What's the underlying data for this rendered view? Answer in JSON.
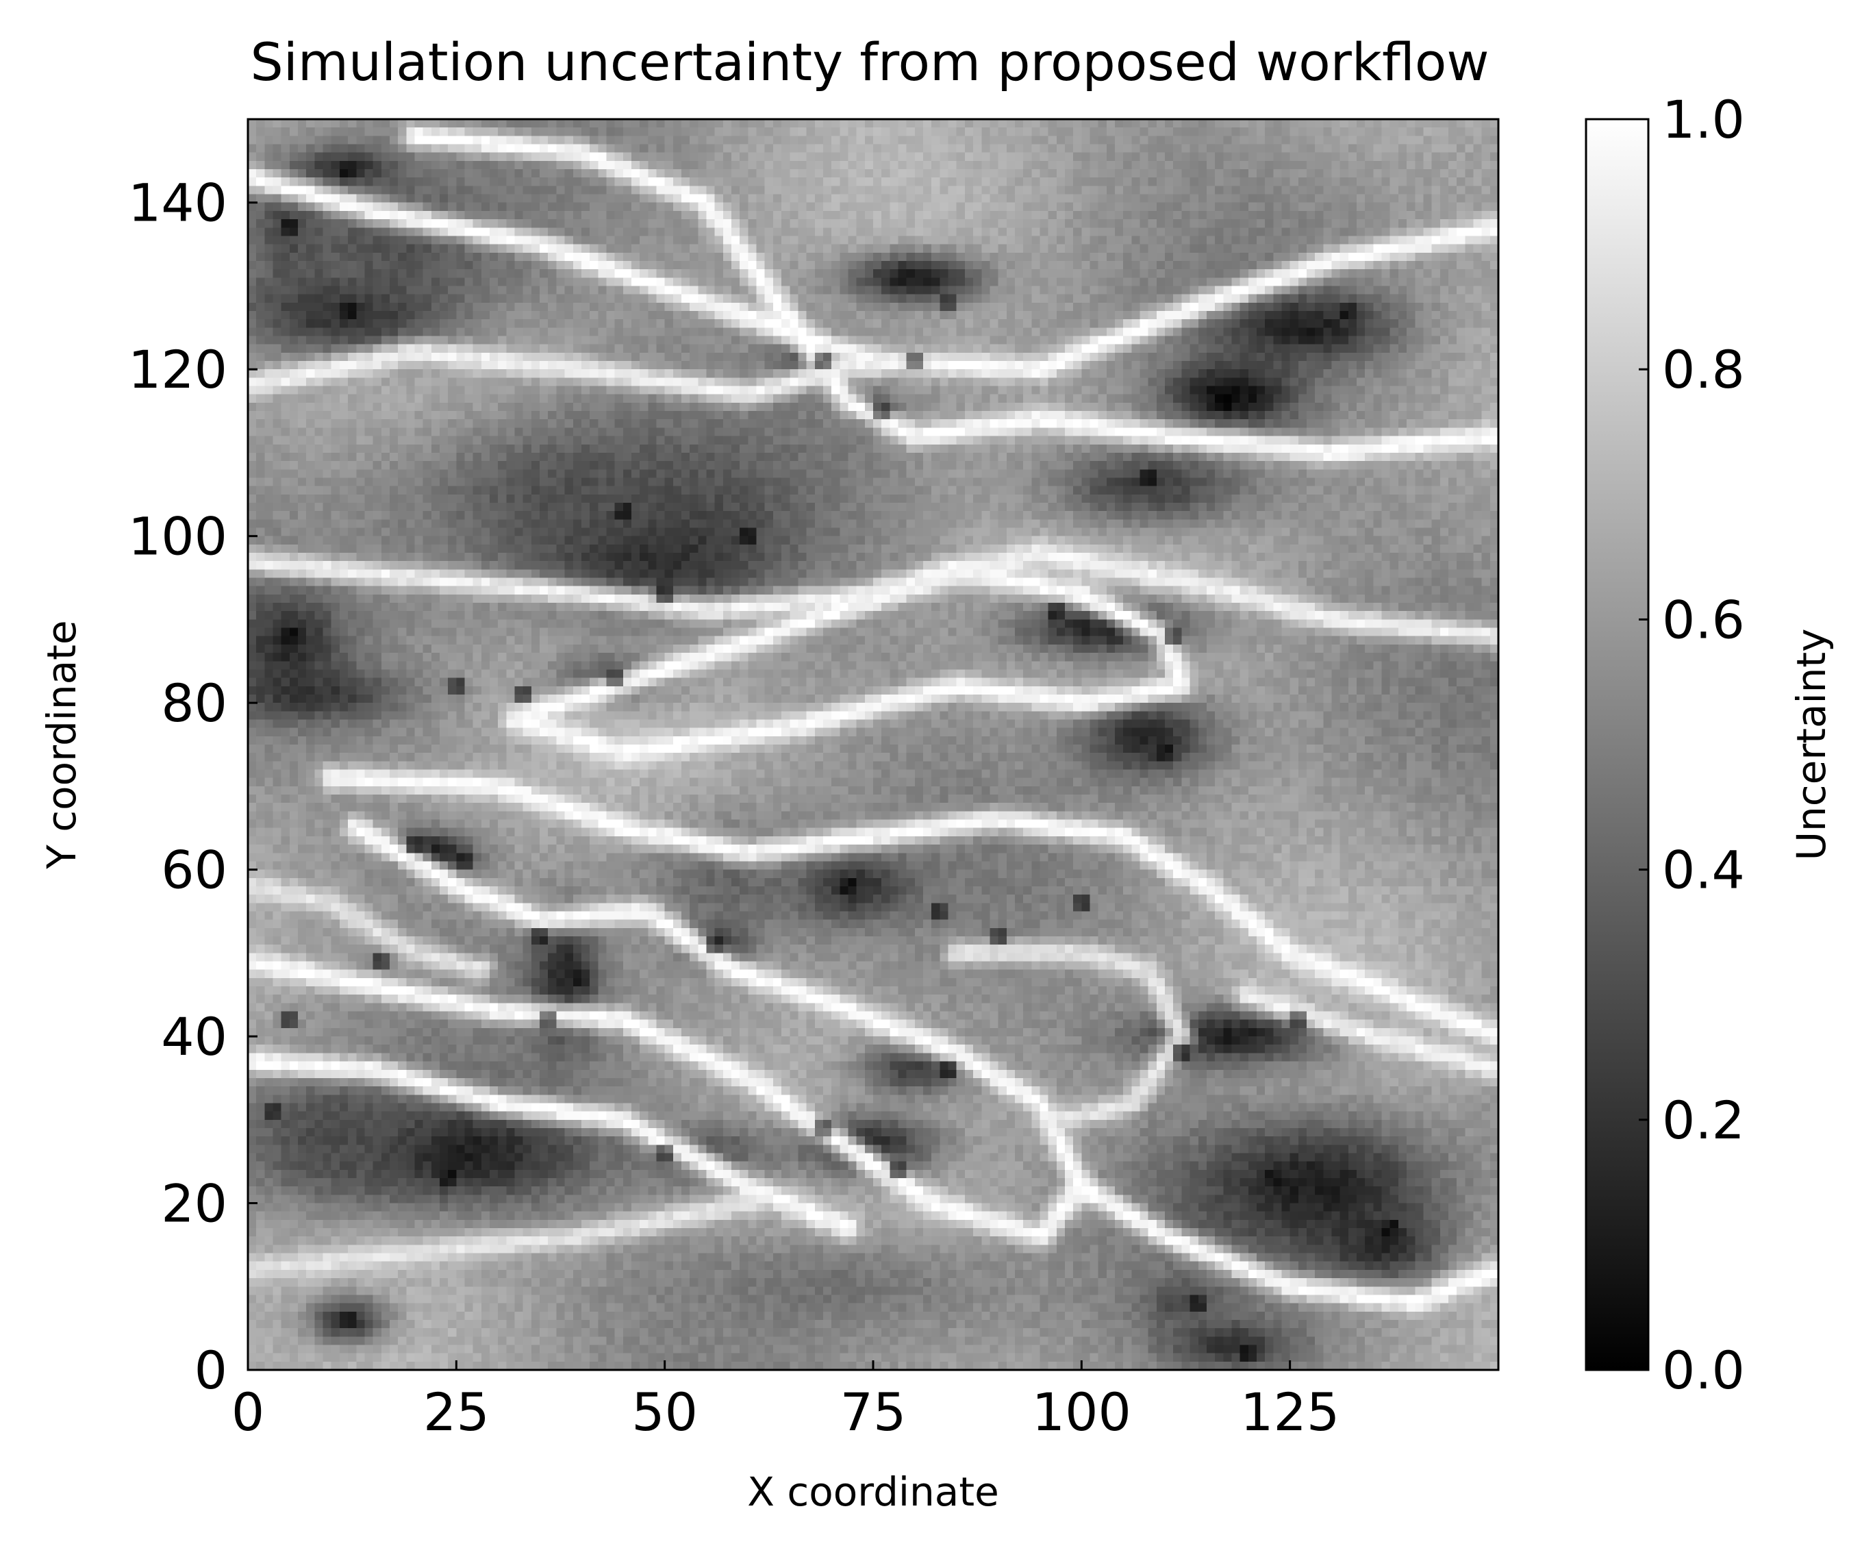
{
  "chart_data": {
    "type": "heatmap",
    "title": "Simulation uncertainty from proposed workflow",
    "xlabel": "X coordinate",
    "ylabel": "Y coordinate",
    "xlim": [
      0,
      150
    ],
    "ylim": [
      0,
      150
    ],
    "x_ticks": [
      0,
      25,
      50,
      75,
      100,
      125
    ],
    "x_tick_labels": [
      "0",
      "25",
      "50",
      "75",
      "100",
      "125"
    ],
    "y_ticks": [
      0,
      20,
      40,
      60,
      80,
      100,
      120,
      140
    ],
    "y_tick_labels": [
      "0",
      "20",
      "40",
      "60",
      "80",
      "100",
      "120",
      "140"
    ],
    "grid_size": [
      150,
      150
    ],
    "colormap": "gray",
    "colorbar": {
      "label": "Uncertainty",
      "range": [
        0.0,
        1.0
      ],
      "ticks": [
        0.0,
        0.2,
        0.4,
        0.6,
        0.8,
        1.0
      ],
      "tick_labels": [
        "0.0",
        "0.2",
        "0.4",
        "0.6",
        "0.8",
        "1.0"
      ],
      "color_low": "#000000",
      "color_high": "#ffffff"
    },
    "grid": false,
    "base_level": 0.6,
    "dark_regions": [
      {
        "x": 12,
        "y": 144,
        "rx": 6,
        "ry": 2.5,
        "value": 0.1
      },
      {
        "x": 5,
        "y": 137,
        "rx": 4,
        "ry": 6,
        "value": 0.22
      },
      {
        "x": 12,
        "y": 127,
        "rx": 12,
        "ry": 5,
        "value": 0.1
      },
      {
        "x": 18,
        "y": 135,
        "rx": 18,
        "ry": 10,
        "value": 0.32
      },
      {
        "x": 80,
        "y": 131,
        "rx": 8,
        "ry": 3,
        "value": 0.1
      },
      {
        "x": 127,
        "y": 125,
        "rx": 10,
        "ry": 4,
        "value": 0.12
      },
      {
        "x": 118,
        "y": 117,
        "rx": 8,
        "ry": 4,
        "value": 0.05
      },
      {
        "x": 68,
        "y": 121,
        "rx": 4,
        "ry": 3,
        "value": 0.15
      },
      {
        "x": 75,
        "y": 115,
        "rx": 3,
        "ry": 2,
        "value": 0.22
      },
      {
        "x": 48,
        "y": 99,
        "rx": 14,
        "ry": 8,
        "value": 0.05
      },
      {
        "x": 40,
        "y": 105,
        "rx": 22,
        "ry": 10,
        "value": 0.32
      },
      {
        "x": 108,
        "y": 106,
        "rx": 12,
        "ry": 5,
        "value": 0.25
      },
      {
        "x": 103,
        "y": 89,
        "rx": 11,
        "ry": 3.5,
        "value": 0.12
      },
      {
        "x": 5,
        "y": 87,
        "rx": 6,
        "ry": 6,
        "value": 0.15
      },
      {
        "x": 8,
        "y": 81,
        "rx": 10,
        "ry": 3,
        "value": 0.2
      },
      {
        "x": 108,
        "y": 76,
        "rx": 8,
        "ry": 5,
        "value": 0.15
      },
      {
        "x": 44,
        "y": 83,
        "rx": 7,
        "ry": 3,
        "value": 0.3
      },
      {
        "x": 22,
        "y": 62,
        "rx": 5,
        "ry": 2.5,
        "value": 0.08
      },
      {
        "x": 72,
        "y": 58,
        "rx": 7,
        "ry": 4,
        "value": 0.12
      },
      {
        "x": 58,
        "y": 59,
        "rx": 12,
        "ry": 8,
        "value": 0.4
      },
      {
        "x": 38,
        "y": 47,
        "rx": 4,
        "ry": 8,
        "value": 0.15
      },
      {
        "x": 56,
        "y": 51,
        "rx": 4,
        "ry": 2.5,
        "value": 0.2
      },
      {
        "x": 118,
        "y": 40,
        "rx": 12,
        "ry": 3.5,
        "value": 0.12
      },
      {
        "x": 80,
        "y": 36,
        "rx": 7,
        "ry": 3,
        "value": 0.25
      },
      {
        "x": 25,
        "y": 26,
        "rx": 16,
        "ry": 6,
        "value": 0.1
      },
      {
        "x": 10,
        "y": 28,
        "rx": 12,
        "ry": 8,
        "value": 0.3
      },
      {
        "x": 74,
        "y": 27,
        "rx": 9,
        "ry": 4,
        "value": 0.15
      },
      {
        "x": 55,
        "y": 26,
        "rx": 8,
        "ry": 4,
        "value": 0.32
      },
      {
        "x": 128,
        "y": 22,
        "rx": 15,
        "ry": 8,
        "value": 0.12
      },
      {
        "x": 136,
        "y": 15,
        "rx": 7,
        "ry": 4,
        "value": 0.15
      },
      {
        "x": 12,
        "y": 6,
        "rx": 5,
        "ry": 3,
        "value": 0.2
      },
      {
        "x": 118,
        "y": 3,
        "rx": 8,
        "ry": 3,
        "value": 0.2
      },
      {
        "x": 112,
        "y": 8,
        "rx": 5,
        "ry": 3,
        "value": 0.3
      },
      {
        "x": 70,
        "y": 10,
        "rx": 22,
        "ry": 6,
        "value": 0.45
      }
    ],
    "ridges": [
      {
        "value": 1.0,
        "points": [
          [
            0,
            143
          ],
          [
            15,
            139
          ],
          [
            35,
            135
          ],
          [
            55,
            128
          ],
          [
            75,
            121
          ],
          [
            95,
            120
          ],
          [
            115,
            128
          ],
          [
            130,
            133
          ],
          [
            150,
            137
          ]
        ]
      },
      {
        "value": 1.0,
        "points": [
          [
            20,
            148
          ],
          [
            40,
            146
          ],
          [
            55,
            140
          ],
          [
            65,
            126
          ],
          [
            72,
            116
          ],
          [
            80,
            112
          ],
          [
            95,
            114
          ],
          [
            110,
            112
          ],
          [
            130,
            110
          ],
          [
            150,
            112
          ]
        ]
      },
      {
        "value": 0.95,
        "points": [
          [
            0,
            118
          ],
          [
            20,
            122
          ],
          [
            40,
            120
          ],
          [
            60,
            117
          ],
          [
            75,
            121
          ]
        ]
      },
      {
        "value": 1.0,
        "points": [
          [
            35,
            79
          ],
          [
            50,
            84
          ],
          [
            65,
            89
          ],
          [
            85,
            96
          ],
          [
            100,
            93
          ],
          [
            110,
            88
          ],
          [
            112,
            82
          ],
          [
            100,
            80
          ],
          [
            85,
            82
          ],
          [
            65,
            77
          ],
          [
            45,
            74
          ],
          [
            32,
            78
          ],
          [
            35,
            79
          ]
        ]
      },
      {
        "value": 0.95,
        "points": [
          [
            0,
            97
          ],
          [
            20,
            95
          ],
          [
            40,
            93
          ],
          [
            55,
            91
          ],
          [
            75,
            93
          ],
          [
            95,
            98
          ],
          [
            115,
            94
          ],
          [
            130,
            90
          ],
          [
            150,
            88
          ]
        ]
      },
      {
        "value": 1.0,
        "points": [
          [
            10,
            71
          ],
          [
            30,
            70
          ],
          [
            45,
            65
          ],
          [
            60,
            62
          ],
          [
            75,
            64
          ],
          [
            90,
            66
          ],
          [
            105,
            64
          ],
          [
            115,
            58
          ],
          [
            125,
            50
          ],
          [
            140,
            44
          ],
          [
            150,
            40
          ]
        ]
      },
      {
        "value": 1.0,
        "points": [
          [
            13,
            65
          ],
          [
            25,
            58
          ],
          [
            35,
            54
          ],
          [
            48,
            55
          ],
          [
            58,
            48
          ],
          [
            70,
            44
          ],
          [
            85,
            38
          ],
          [
            95,
            32
          ],
          [
            100,
            22
          ],
          [
            110,
            16
          ],
          [
            125,
            10
          ],
          [
            140,
            8
          ],
          [
            150,
            12
          ]
        ]
      },
      {
        "value": 1.0,
        "points": [
          [
            0,
            49
          ],
          [
            15,
            46
          ],
          [
            30,
            43
          ],
          [
            45,
            42
          ],
          [
            60,
            35
          ],
          [
            70,
            28
          ],
          [
            82,
            20
          ],
          [
            95,
            16
          ],
          [
            100,
            22
          ]
        ]
      },
      {
        "value": 1.0,
        "points": [
          [
            0,
            37
          ],
          [
            15,
            36
          ],
          [
            30,
            32
          ],
          [
            45,
            30
          ],
          [
            60,
            22
          ],
          [
            72,
            17
          ]
        ]
      },
      {
        "value": 0.9,
        "points": [
          [
            85,
            50
          ],
          [
            100,
            50
          ],
          [
            108,
            48
          ],
          [
            112,
            40
          ],
          [
            106,
            32
          ],
          [
            98,
            30
          ]
        ]
      },
      {
        "value": 0.95,
        "points": [
          [
            120,
            45
          ],
          [
            135,
            40
          ],
          [
            150,
            36
          ]
        ]
      },
      {
        "value": 0.9,
        "points": [
          [
            0,
            58
          ],
          [
            10,
            56
          ],
          [
            20,
            50
          ],
          [
            28,
            48
          ]
        ]
      },
      {
        "value": 0.9,
        "points": [
          [
            0,
            12
          ],
          [
            20,
            14
          ],
          [
            40,
            16
          ],
          [
            60,
            20
          ]
        ]
      }
    ],
    "point_minima": [
      {
        "x": 5,
        "y": 137
      },
      {
        "x": 12,
        "y": 144
      },
      {
        "x": 12,
        "y": 127
      },
      {
        "x": 69,
        "y": 121
      },
      {
        "x": 76,
        "y": 115
      },
      {
        "x": 80,
        "y": 121
      },
      {
        "x": 84,
        "y": 128
      },
      {
        "x": 117,
        "y": 116
      },
      {
        "x": 132,
        "y": 127
      },
      {
        "x": 108,
        "y": 107
      },
      {
        "x": 45,
        "y": 103
      },
      {
        "x": 50,
        "y": 93
      },
      {
        "x": 60,
        "y": 100
      },
      {
        "x": 97,
        "y": 91
      },
      {
        "x": 111,
        "y": 88
      },
      {
        "x": 5,
        "y": 88
      },
      {
        "x": 25,
        "y": 82
      },
      {
        "x": 33,
        "y": 81
      },
      {
        "x": 44,
        "y": 83
      },
      {
        "x": 110,
        "y": 74
      },
      {
        "x": 20,
        "y": 63
      },
      {
        "x": 26,
        "y": 61
      },
      {
        "x": 72,
        "y": 58
      },
      {
        "x": 83,
        "y": 55
      },
      {
        "x": 90,
        "y": 52
      },
      {
        "x": 100,
        "y": 56
      },
      {
        "x": 35,
        "y": 52
      },
      {
        "x": 40,
        "y": 47
      },
      {
        "x": 36,
        "y": 42
      },
      {
        "x": 16,
        "y": 49
      },
      {
        "x": 56,
        "y": 51
      },
      {
        "x": 5,
        "y": 42
      },
      {
        "x": 112,
        "y": 38
      },
      {
        "x": 126,
        "y": 42
      },
      {
        "x": 84,
        "y": 36
      },
      {
        "x": 3,
        "y": 31
      },
      {
        "x": 24,
        "y": 23
      },
      {
        "x": 50,
        "y": 26
      },
      {
        "x": 69,
        "y": 29
      },
      {
        "x": 78,
        "y": 24
      },
      {
        "x": 123,
        "y": 23
      },
      {
        "x": 137,
        "y": 17
      },
      {
        "x": 12,
        "y": 6
      },
      {
        "x": 114,
        "y": 8
      },
      {
        "x": 120,
        "y": 2
      }
    ]
  }
}
